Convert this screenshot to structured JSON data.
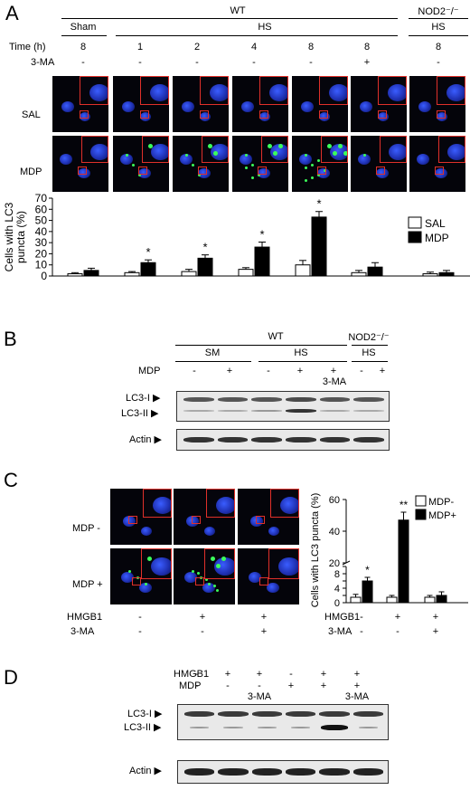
{
  "panels": {
    "a": "A",
    "b": "B",
    "c": "C",
    "d": "D"
  },
  "panel_a": {
    "group_wt": "WT",
    "group_nod2": "NOD2⁻/⁻",
    "sham": "Sham",
    "hs": "HS",
    "hs_nod2": "HS",
    "time_label": "Time  (h)",
    "times": [
      "8",
      "1",
      "2",
      "4",
      "8",
      "8",
      "8"
    ],
    "ma_label": "3-MA",
    "ma_values": [
      "-",
      "-",
      "-",
      "-",
      "-",
      "+",
      "-"
    ],
    "row_sal": "SAL",
    "row_mdp": "MDP"
  },
  "panel_b": {
    "group_wt": "WT",
    "group_nod2": "NOD2⁻/⁻",
    "sm": "SM",
    "hs": "HS",
    "hs_nod2": "HS",
    "mdp_label": "MDP",
    "mdp_values": [
      "-",
      "+",
      "-",
      "+",
      "+",
      "-",
      "+"
    ],
    "ma_note": "3-MA",
    "lc3i": "LC3-I",
    "lc3ii": "LC3-II",
    "actin": "Actin"
  },
  "panel_c": {
    "row_minus": "MDP  -",
    "row_plus": "MDP  +",
    "hmgb1_label": "HMGB1",
    "hmgb1_values": [
      "-",
      "+",
      "+"
    ],
    "ma_label": "3-MA",
    "ma_values": [
      "-",
      "-",
      "+"
    ],
    "chart_hmgb1": "HMGB1",
    "chart_ma": "3-MA",
    "chart_hmgb1_values": [
      "-",
      "+",
      "+"
    ],
    "chart_ma_values": [
      "-",
      "-",
      "+"
    ]
  },
  "panel_d": {
    "hmgb1_label": "HMGB1",
    "hmgb1_values": [
      "-",
      "+",
      "+",
      "-",
      "+",
      "+"
    ],
    "mdp_label": "MDP",
    "mdp_values": [
      "-",
      "-",
      "-",
      "+",
      "+",
      "+"
    ],
    "ma_notes": [
      "3-MA",
      "3-MA"
    ],
    "lc3i": "LC3-I",
    "lc3ii": "LC3-II",
    "actin": "Actin"
  },
  "chart_data": [
    {
      "type": "bar",
      "ylabel": "Cells with LC3\npuncta (%)",
      "ylim": [
        0,
        70
      ],
      "yticks": [
        0,
        10,
        20,
        30,
        40,
        50,
        60,
        70
      ],
      "legend_position": "right",
      "series": [
        {
          "name": "SAL",
          "color": "#ffffff",
          "values": [
            2,
            3,
            4,
            6,
            10,
            3,
            2
          ],
          "errors": [
            1,
            1,
            2,
            1.5,
            4,
            2,
            1.5
          ]
        },
        {
          "name": "MDP",
          "color": "#000000",
          "values": [
            5,
            12,
            16,
            26,
            53,
            8,
            3
          ],
          "errors": [
            2,
            2.5,
            3,
            4.5,
            5,
            4,
            2
          ]
        }
      ],
      "annotations": [
        "",
        "*",
        "*",
        "*",
        "*",
        "",
        ""
      ]
    },
    {
      "type": "bar",
      "ylabel": "Cells with LC3 puncta (%)",
      "yticks_lower": [
        0,
        2,
        4,
        6,
        8,
        10
      ],
      "yticks_upper": [
        20,
        40,
        60
      ],
      "broken_axis": true,
      "legend_position": "top-right",
      "series": [
        {
          "name": "MDP-",
          "color": "#ffffff",
          "values": [
            1.5,
            1.5,
            1.5
          ],
          "errors": [
            0.8,
            0.5,
            0.5
          ]
        },
        {
          "name": "MDP+",
          "color": "#000000",
          "values": [
            6,
            47,
            2
          ],
          "errors": [
            1,
            5,
            1
          ]
        }
      ],
      "annotations": [
        "*",
        "**",
        ""
      ]
    }
  ]
}
